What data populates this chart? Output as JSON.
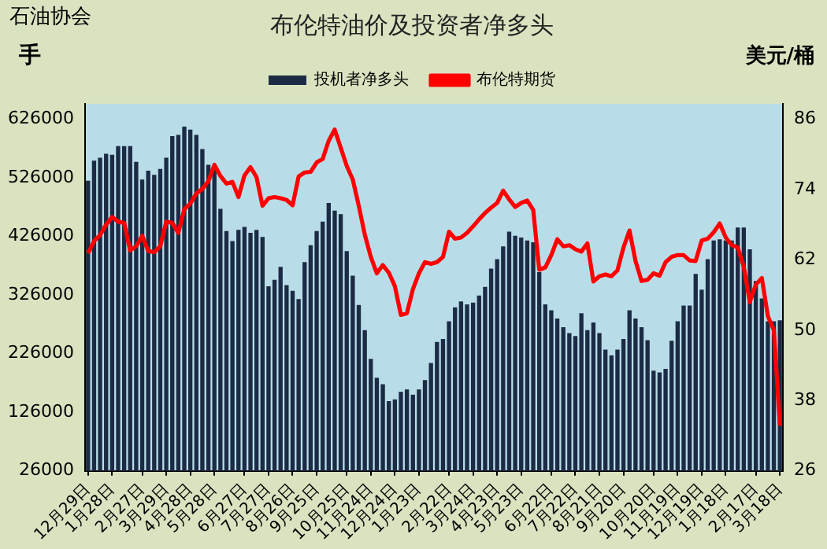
{
  "chart_data": {
    "type": "bar",
    "title": "布伦特油价及投资者净多头",
    "annotations": [
      "石油协会"
    ],
    "ylabel": "手",
    "y2label": "美元/桶",
    "legend": "top",
    "grid": false,
    "categories": [
      "12月29日",
      null,
      null,
      null,
      "1月28日",
      null,
      null,
      null,
      null,
      "2月27日",
      null,
      null,
      null,
      "3月29日",
      null,
      null,
      null,
      "4月28日",
      null,
      null,
      null,
      "5月28日",
      null,
      null,
      null,
      null,
      "6月27日",
      null,
      null,
      null,
      "7月27日",
      null,
      null,
      null,
      "8月26日",
      null,
      null,
      null,
      "9月25日",
      null,
      null,
      null,
      null,
      "10月25日",
      null,
      null,
      null,
      "11月24日",
      null,
      null,
      null,
      "12月24日",
      null,
      null,
      null,
      "1月23日",
      null,
      null,
      null,
      null,
      "2月22日",
      null,
      null,
      null,
      "3月24日",
      null,
      null,
      null,
      "4月23日",
      null,
      null,
      null,
      "5月23日",
      null,
      null,
      null,
      null,
      "6月22日",
      null,
      null,
      null,
      "7月22日",
      null,
      null,
      null,
      "8月21日",
      null,
      null,
      null,
      "9月20日",
      null,
      null,
      null,
      null,
      "10月20日",
      null,
      null,
      null,
      "11月19日",
      null,
      null,
      null,
      "12月19日",
      null,
      null,
      null,
      "1月18日",
      null,
      null,
      null,
      null,
      "2月17日",
      null,
      null,
      null,
      "3月18日"
    ],
    "ylim": [
      26000,
      652000
    ],
    "yticks": [
      26000,
      126000,
      226000,
      326000,
      426000,
      526000,
      626000
    ],
    "y2lim": [
      26,
      88.6
    ],
    "y2ticks": [
      26,
      38,
      50,
      62,
      74,
      86
    ],
    "series": [
      {
        "name": "投机者净多头",
        "color": "#1c2b45",
        "values": [
          521000,
          555000,
          560000,
          567000,
          565000,
          580000,
          580000,
          580000,
          553000,
          523000,
          538000,
          531000,
          541000,
          560000,
          597000,
          599000,
          613000,
          608000,
          599000,
          575000,
          548000,
          541000,
          473000,
          435000,
          418000,
          437000,
          442000,
          432000,
          437000,
          425000,
          341000,
          352000,
          374000,
          343000,
          333000,
          319000,
          382000,
          411000,
          435000,
          451000,
          483000,
          470000,
          464000,
          401000,
          359000,
          309000,
          266000,
          217000,
          185000,
          174000,
          145000,
          148000,
          161000,
          165000,
          156000,
          165000,
          181000,
          210000,
          246000,
          251000,
          281000,
          305000,
          315000,
          310000,
          313000,
          325000,
          340000,
          371000,
          387000,
          409000,
          434000,
          427000,
          424000,
          419000,
          416000,
          365000,
          310000,
          300000,
          286000,
          271000,
          261000,
          256000,
          295000,
          266000,
          279000,
          261000,
          233000,
          223000,
          233000,
          251000,
          300000,
          286000,
          271000,
          249000,
          197000,
          194000,
          200000,
          248000,
          281000,
          308000,
          308000,
          362000,
          335000,
          387000,
          419000,
          421000,
          419000,
          419000,
          441000,
          441000,
          404000,
          350000,
          320000,
          281000,
          281000,
          283000
        ]
      },
      {
        "name": "布伦特期货",
        "type": "line",
        "axis": "y2",
        "color": "#ff0000",
        "marker": "none",
        "values": [
          63.1,
          65.2,
          66.2,
          68.0,
          69.3,
          68.5,
          68.3,
          63.6,
          64.3,
          66.1,
          63.5,
          63.3,
          64.3,
          68.5,
          68.3,
          66.6,
          70.6,
          71.6,
          73.3,
          74.1,
          75.4,
          78.2,
          76.3,
          75.0,
          75.3,
          72.7,
          76.4,
          77.8,
          76.1,
          71.2,
          72.5,
          72.7,
          72.5,
          72.2,
          71.3,
          76.2,
          76.9,
          77.0,
          78.6,
          79.2,
          82.3,
          84.2,
          81.1,
          78.0,
          75.7,
          71.2,
          66.3,
          62.5,
          59.7,
          61.1,
          59.8,
          57.5,
          52.6,
          52.9,
          57.0,
          59.7,
          61.6,
          61.3,
          61.6,
          62.5,
          66.8,
          65.6,
          65.8,
          66.6,
          67.7,
          68.9,
          70.0,
          70.9,
          71.7,
          73.8,
          72.3,
          71.0,
          71.7,
          72.1,
          70.5,
          60.3,
          60.7,
          62.8,
          65.5,
          64.3,
          64.5,
          63.8,
          63.4,
          64.8,
          58.3,
          59.2,
          59.5,
          59.2,
          60.2,
          64.1,
          67.0,
          61.8,
          58.4,
          58.6,
          59.7,
          59.3,
          61.6,
          62.5,
          62.8,
          62.8,
          61.9,
          61.8,
          65.3,
          65.6,
          66.7,
          68.2,
          65.8,
          64.5,
          64.1,
          60.8,
          54.8,
          57.8,
          58.9,
          52.4,
          50.0,
          33.7
        ]
      }
    ]
  }
}
